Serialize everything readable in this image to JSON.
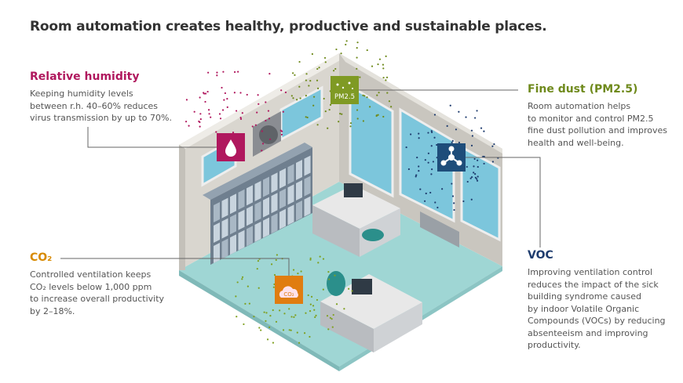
{
  "title": "Room automation creates healthy, productive and sustainable places.",
  "colors": {
    "humidity": "#b0185e",
    "fine_dust": "#6f8a1c",
    "co2": "#d88a00",
    "voc": "#1e3c6e",
    "text": "#555555"
  },
  "sections": {
    "humidity": {
      "heading": "Relative humidity",
      "lines": [
        "Keeping humidity levels",
        "between r.h. 40–60% reduces",
        "virus transmission by up to 70%."
      ],
      "icon": "water-drop-icon"
    },
    "fine_dust": {
      "heading": "Fine dust (PM2.5)",
      "lines": [
        "Room automation helps",
        "to monitor and control PM2.5",
        "fine dust pollution and improves",
        "health and well-being."
      ],
      "icon_label": "PM2.5"
    },
    "co2": {
      "heading": "CO₂",
      "lines": [
        "Controlled ventilation keeps",
        "CO₂ levels below 1,000 ppm",
        "to increase overall productivity",
        "by 2–18%."
      ],
      "icon_label": "CO₂",
      "icon": "cloud-icon"
    },
    "voc": {
      "heading": "VOC",
      "lines": [
        "Improving ventilation control",
        "reduces the impact of the sick",
        "building syndrome caused",
        "by indoor Volatile Organic",
        "Compounds (VOCs) by reducing",
        "absenteeism and improving",
        "productivity."
      ],
      "icon": "molecule-icon"
    }
  }
}
